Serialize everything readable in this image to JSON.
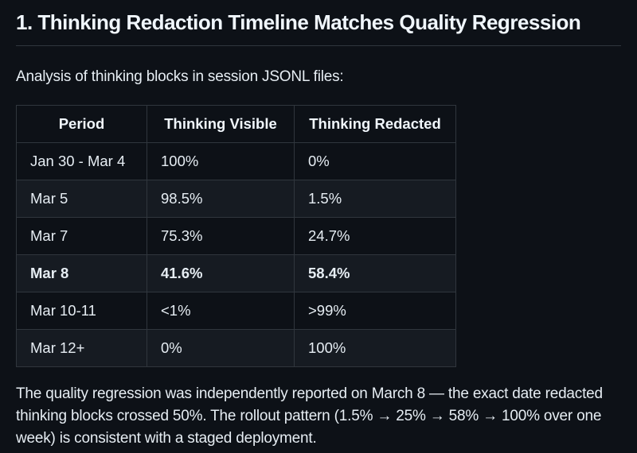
{
  "heading": {
    "text": "1. Thinking Redaction Timeline Matches Quality Regression"
  },
  "intro": {
    "text": "Analysis of thinking blocks in session JSONL files:"
  },
  "table": {
    "columns": [
      "Period",
      "Thinking Visible",
      "Thinking Redacted"
    ],
    "rows": [
      {
        "period": "Jan 30 - Mar 4",
        "visible": "100%",
        "redacted": "0%",
        "bold": false
      },
      {
        "period": "Mar 5",
        "visible": "98.5%",
        "redacted": "1.5%",
        "bold": false
      },
      {
        "period": "Mar 7",
        "visible": "75.3%",
        "redacted": "24.7%",
        "bold": false
      },
      {
        "period": "Mar 8",
        "visible": "41.6%",
        "redacted": "58.4%",
        "bold": true
      },
      {
        "period": "Mar 10-11",
        "visible": "<1%",
        "redacted": ">99%",
        "bold": false
      },
      {
        "period": "Mar 12+",
        "visible": "0%",
        "redacted": "100%",
        "bold": false
      }
    ]
  },
  "footer": {
    "text": "The quality regression was independently reported on March 8 — the exact date redacted thinking blocks crossed 50%. The rollout pattern (1.5% → 25% → 58% → 100% over one week) is consistent with a staged deployment."
  },
  "colors": {
    "background": "#0d1117",
    "text": "#e6edf3",
    "heading": "#f0f6fc",
    "border": "#30363d",
    "row_alt_background": "#161b22"
  }
}
